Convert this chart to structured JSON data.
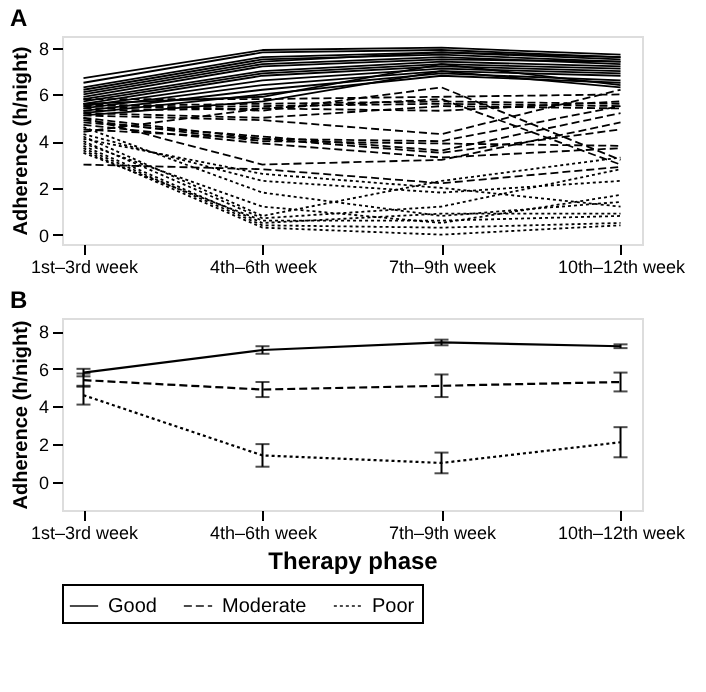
{
  "chart_data": [
    {
      "type": "line",
      "title": "A",
      "ylabel": "Adherence (h/night)",
      "categories": [
        "1st–3rd week",
        "4th–6th week",
        "7th–9th week",
        "10th–12th week"
      ],
      "ylim": [
        -0.4,
        8.5
      ],
      "yticks": [
        0,
        2,
        4,
        6,
        8
      ],
      "grid": false,
      "legend": false,
      "series": [
        {
          "color": "#000000",
          "line_style": "solid",
          "values": [
            6.7,
            7.9,
            8.0,
            7.7
          ]
        },
        {
          "color": "#000000",
          "line_style": "solid",
          "values": [
            6.5,
            7.8,
            7.9,
            7.6
          ]
        },
        {
          "color": "#000000",
          "line_style": "solid",
          "values": [
            6.3,
            7.6,
            7.8,
            7.5
          ]
        },
        {
          "color": "#000000",
          "line_style": "solid",
          "values": [
            6.2,
            7.5,
            7.7,
            7.4
          ]
        },
        {
          "color": "#000000",
          "line_style": "solid",
          "values": [
            6.0,
            7.3,
            7.6,
            7.3
          ]
        },
        {
          "color": "#000000",
          "line_style": "solid",
          "values": [
            5.9,
            7.2,
            7.5,
            7.4
          ]
        },
        {
          "color": "#000000",
          "line_style": "solid",
          "values": [
            5.8,
            7.0,
            7.4,
            7.2
          ]
        },
        {
          "color": "#000000",
          "line_style": "solid",
          "values": [
            5.7,
            6.9,
            7.3,
            7.1
          ]
        },
        {
          "color": "#000000",
          "line_style": "solid",
          "values": [
            5.6,
            6.8,
            7.2,
            7.0
          ]
        },
        {
          "color": "#000000",
          "line_style": "solid",
          "values": [
            5.5,
            6.6,
            7.1,
            6.9
          ]
        },
        {
          "color": "#000000",
          "line_style": "solid",
          "values": [
            5.4,
            6.4,
            7.0,
            6.8
          ]
        },
        {
          "color": "#000000",
          "line_style": "solid",
          "values": [
            5.3,
            6.2,
            6.9,
            6.6
          ]
        },
        {
          "color": "#000000",
          "line_style": "solid",
          "values": [
            5.2,
            6.0,
            6.8,
            6.5
          ]
        },
        {
          "color": "#000000",
          "line_style": "solid",
          "values": [
            5.6,
            5.9,
            7.3,
            6.4
          ]
        },
        {
          "color": "#000000",
          "line_style": "solid",
          "values": [
            5.1,
            5.7,
            7.0,
            6.3
          ]
        },
        {
          "color": "#000000",
          "line_style": "solid",
          "values": [
            6.1,
            7.4,
            7.8,
            7.6
          ]
        },
        {
          "color": "#000000",
          "line_style": "dashed",
          "values": [
            5.8,
            5.8,
            5.9,
            6.0
          ]
        },
        {
          "color": "#000000",
          "line_style": "dashed",
          "values": [
            5.5,
            5.6,
            5.7,
            5.6
          ]
        },
        {
          "color": "#000000",
          "line_style": "dashed",
          "values": [
            5.4,
            5.5,
            5.6,
            5.5
          ]
        },
        {
          "color": "#000000",
          "line_style": "dashed",
          "values": [
            5.3,
            5.4,
            5.3,
            5.7
          ]
        },
        {
          "color": "#000000",
          "line_style": "dashed",
          "values": [
            5.2,
            5.0,
            5.5,
            5.4
          ]
        },
        {
          "color": "#000000",
          "line_style": "dashed",
          "values": [
            5.1,
            4.9,
            4.3,
            6.2
          ]
        },
        {
          "color": "#000000",
          "line_style": "dashed",
          "values": [
            5.0,
            4.1,
            4.0,
            5.5
          ]
        },
        {
          "color": "#000000",
          "line_style": "dashed",
          "values": [
            4.9,
            4.0,
            3.9,
            3.8
          ]
        },
        {
          "color": "#000000",
          "line_style": "dashed",
          "values": [
            4.8,
            4.2,
            3.6,
            5.2
          ]
        },
        {
          "color": "#000000",
          "line_style": "dashed",
          "values": [
            4.7,
            3.9,
            3.3,
            3.7
          ]
        },
        {
          "color": "#000000",
          "line_style": "dashed",
          "values": [
            4.5,
            4.1,
            3.5,
            4.5
          ]
        },
        {
          "color": "#000000",
          "line_style": "dashed",
          "values": [
            5.6,
            5.3,
            6.3,
            3.2
          ]
        },
        {
          "color": "#000000",
          "line_style": "dashed",
          "values": [
            5.0,
            3.0,
            3.2,
            4.8
          ]
        },
        {
          "color": "#000000",
          "line_style": "dashed",
          "values": [
            3.0,
            2.8,
            2.2,
            2.9
          ]
        },
        {
          "color": "#000000",
          "line_style": "dashed",
          "values": [
            4.4,
            5.4,
            5.8,
            3.0
          ]
        },
        {
          "color": "#000000",
          "line_style": "dotted",
          "values": [
            4.3,
            2.3,
            1.8,
            2.3
          ]
        },
        {
          "color": "#000000",
          "line_style": "dotted",
          "values": [
            4.0,
            0.7,
            1.2,
            2.8
          ]
        },
        {
          "color": "#000000",
          "line_style": "dotted",
          "values": [
            3.9,
            1.2,
            0.5,
            1.7
          ]
        },
        {
          "color": "#000000",
          "line_style": "dotted",
          "values": [
            3.8,
            0.5,
            0.9,
            0.9
          ]
        },
        {
          "color": "#000000",
          "line_style": "dotted",
          "values": [
            4.2,
            0.8,
            2.3,
            3.3
          ]
        },
        {
          "color": "#000000",
          "line_style": "dotted",
          "values": [
            3.7,
            0.4,
            0.3,
            0.5
          ]
        },
        {
          "color": "#000000",
          "line_style": "dotted",
          "values": [
            3.6,
            0.3,
            0.0,
            0.4
          ]
        },
        {
          "color": "#000000",
          "line_style": "dotted",
          "values": [
            4.6,
            1.8,
            0.8,
            1.4
          ]
        },
        {
          "color": "#000000",
          "line_style": "dotted",
          "values": [
            3.5,
            0.6,
            0.6,
            0.8
          ]
        },
        {
          "color": "#000000",
          "line_style": "dotted",
          "values": [
            4.1,
            2.6,
            2.0,
            1.2
          ]
        }
      ]
    },
    {
      "type": "line",
      "title": "B",
      "xlabel": "Therapy phase",
      "ylabel": "Adherence (h/night)",
      "categories": [
        "1st–3rd week",
        "4th–6th week",
        "7th–9th week",
        "10th–12th week"
      ],
      "ylim": [
        -1.5,
        8.7
      ],
      "yticks": [
        0,
        2,
        4,
        6,
        8
      ],
      "grid": false,
      "legend": "bottom",
      "series": [
        {
          "name": "Good",
          "color": "#000000",
          "line_style": "solid",
          "values": [
            5.8,
            7.0,
            7.4,
            7.2
          ],
          "errors": [
            0.2,
            0.2,
            0.15,
            0.1
          ]
        },
        {
          "name": "Moderate",
          "color": "#000000",
          "line_style": "dashed",
          "values": [
            5.4,
            4.9,
            5.1,
            5.3
          ],
          "errors": [
            0.35,
            0.4,
            0.6,
            0.5
          ]
        },
        {
          "name": "Poor",
          "color": "#000000",
          "line_style": "dotted",
          "values": [
            4.6,
            1.4,
            1.0,
            2.1
          ],
          "errors": [
            0.5,
            0.6,
            0.55,
            0.8
          ]
        }
      ]
    }
  ]
}
